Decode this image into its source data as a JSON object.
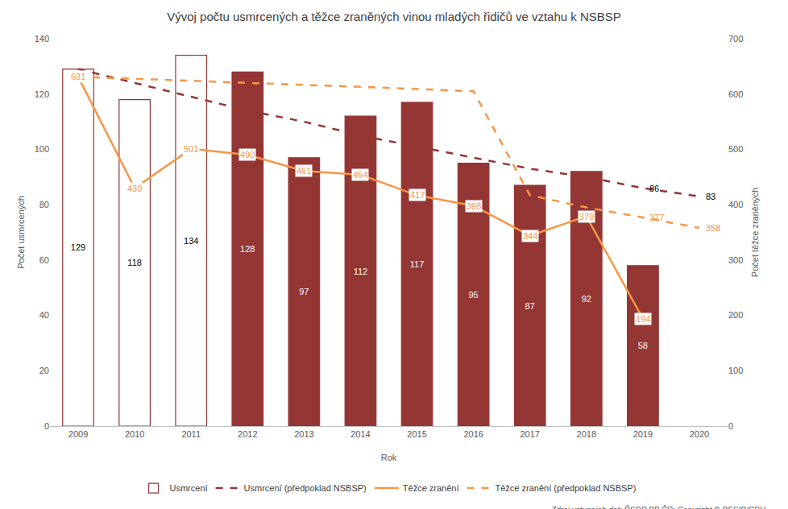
{
  "chart_data": {
    "type": "bar",
    "title": "Vývoj počtu usmrcených a těžce zraněných vinou mladých řidičů ve vztahu k NSBSP",
    "x_label": "Rok",
    "y_label": "Počet usmrcených",
    "y2_label": "Počet těžce zraněných",
    "source": "Zdroj vstupních dat: ŘSDP PP ČR; Copyright © BESIP/CDV",
    "categories": [
      "2009",
      "2010",
      "2011",
      "2012",
      "2013",
      "2014",
      "2015",
      "2016",
      "2017",
      "2018",
      "2019",
      "2020"
    ],
    "ylim": [
      0,
      140
    ],
    "yticks": [
      0,
      20,
      40,
      60,
      80,
      100,
      120,
      140
    ],
    "y2lim": [
      0,
      700
    ],
    "y2ticks": [
      0,
      100,
      200,
      300,
      400,
      500,
      600,
      700
    ],
    "grid": false,
    "legend": "bottom",
    "series": [
      {
        "name": "Usmrcení",
        "type": "bar",
        "axis": "y",
        "color": "#943634",
        "colors": [
          "#ffffff",
          "#ffffff",
          "#ffffff",
          "#943634",
          "#943634",
          "#943634",
          "#943634",
          "#943634",
          "#943634",
          "#943634",
          "#943634",
          "#943634"
        ],
        "data_labels": true,
        "values": [
          129,
          118,
          134,
          128,
          97,
          112,
          117,
          95,
          87,
          92,
          58,
          null
        ]
      },
      {
        "name": "Usmrcení (předpoklad NSBSP)",
        "type": "line",
        "line_style": "dashed",
        "axis": "y",
        "color": "#943634",
        "values": [
          129,
          124,
          119,
          114,
          110,
          105,
          101,
          97,
          93,
          90,
          86,
          83
        ],
        "value_labels": [
          null,
          null,
          null,
          null,
          null,
          null,
          null,
          null,
          null,
          null,
          "86",
          "83"
        ]
      },
      {
        "name": "Těžce zranění",
        "type": "line",
        "line_style": "solid",
        "axis": "y2",
        "color": "#f79646",
        "data_labels": true,
        "values": [
          631,
          430,
          501,
          490,
          461,
          454,
          417,
          398,
          344,
          379,
          194,
          null
        ]
      },
      {
        "name": "Těžce zranění (předpoklad NSBSP)",
        "type": "line",
        "line_style": "dashed",
        "axis": "y2",
        "color": "#f79646",
        "values": [
          631,
          628,
          624,
          620,
          617,
          613,
          609,
          605,
          417,
          395,
          377,
          358
        ],
        "value_labels": [
          null,
          null,
          null,
          null,
          null,
          null,
          null,
          null,
          null,
          null,
          "377",
          "358"
        ]
      }
    ]
  }
}
